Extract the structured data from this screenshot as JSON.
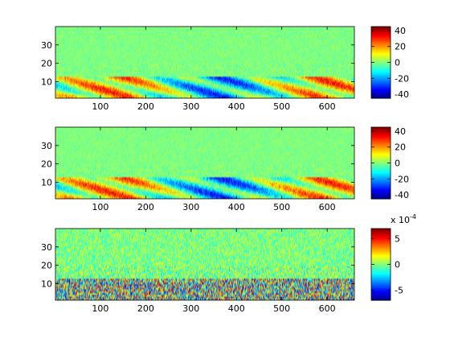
{
  "chart_data": [
    {
      "type": "heatmap",
      "title": "",
      "xlabel": "",
      "ylabel": "",
      "xlim": [
        1,
        660
      ],
      "ylim": [
        1,
        40
      ],
      "xticks": [
        100,
        200,
        300,
        400,
        500,
        600
      ],
      "yticks": [
        10,
        20,
        30
      ],
      "colormap": "jet",
      "clim": [
        -45,
        45
      ],
      "colorbar": {
        "ticks": [
          40,
          20,
          0,
          -20,
          -40
        ],
        "exponent": ""
      },
      "rows_profile": {
        "active_rows": [
          1,
          12
        ],
        "active_amplitude": 40,
        "background_amplitude": 6
      }
    },
    {
      "type": "heatmap",
      "title": "",
      "xlabel": "",
      "ylabel": "",
      "xlim": [
        1,
        660
      ],
      "ylim": [
        1,
        40
      ],
      "xticks": [
        100,
        200,
        300,
        400,
        500,
        600
      ],
      "yticks": [
        10,
        20,
        30
      ],
      "colormap": "jet",
      "clim": [
        -45,
        45
      ],
      "colorbar": {
        "ticks": [
          40,
          20,
          0,
          -20,
          -40
        ],
        "exponent": ""
      },
      "rows_profile": {
        "active_rows": [
          1,
          12
        ],
        "active_amplitude": 40,
        "background_amplitude": 6
      }
    },
    {
      "type": "heatmap",
      "title": "",
      "xlabel": "",
      "ylabel": "",
      "xlim": [
        1,
        660
      ],
      "ylim": [
        1,
        40
      ],
      "xticks": [
        100,
        200,
        300,
        400,
        500,
        600
      ],
      "yticks": [
        10,
        20,
        30
      ],
      "colormap": "jet",
      "clim": [
        -7,
        7
      ],
      "colorbar": {
        "ticks": [
          5,
          0,
          -5
        ],
        "exponent": "x 10-4"
      },
      "rows_profile": {
        "active_rows": [
          1,
          12
        ],
        "active_amplitude": 7,
        "background_amplitude": 2.5
      }
    }
  ]
}
